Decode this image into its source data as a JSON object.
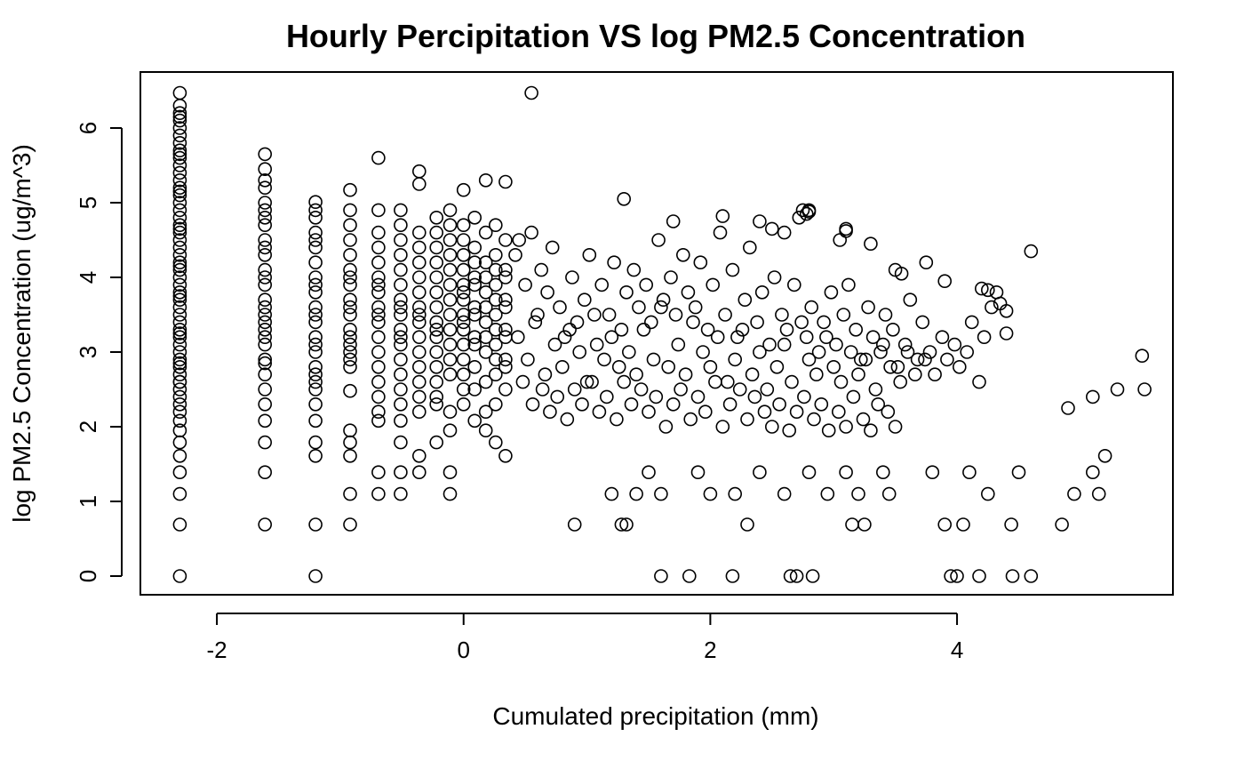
{
  "chart_data": {
    "type": "scatter",
    "title": "Hourly Percipitation VS log PM2.5 Concentration",
    "xlabel": "Cumulated precipitation (mm)",
    "ylabel": "log PM2.5 Concentration (ug/m^3)",
    "xlim": [
      -2.62,
      5.75
    ],
    "ylim": [
      -0.25,
      6.75
    ],
    "xticks": [
      -2,
      0,
      2,
      4
    ],
    "yticks": [
      0,
      1,
      2,
      3,
      4,
      5,
      6
    ],
    "grid": false,
    "legend": "none",
    "marker": "open-circle",
    "marker_color": "#000000",
    "columns_note_excluded": true,
    "x": [
      -2.3,
      -2.3,
      -2.3,
      -2.3,
      -2.3,
      -2.3,
      -2.3,
      -2.3,
      -2.3,
      -2.3,
      -2.3,
      -2.3,
      -2.3,
      -2.3,
      -2.3,
      -2.3,
      -2.3,
      -2.3,
      -2.3,
      -2.3,
      -2.3,
      -2.3,
      -2.3,
      -2.3,
      -2.3,
      -2.3,
      -2.3,
      -2.3,
      -2.3,
      -2.3,
      -2.3,
      -2.3,
      -2.3,
      -2.3,
      -2.3,
      -2.3,
      -2.3,
      -2.3,
      -2.3,
      -2.3,
      -2.3,
      -2.3,
      -2.3,
      -2.3,
      -2.3,
      -2.3,
      -2.3,
      -2.3,
      -2.3,
      -2.3,
      -2.3,
      -2.3,
      -2.3,
      -2.3,
      -2.3,
      -2.3,
      -2.3,
      -2.3,
      -2.3,
      -2.3,
      -1.61,
      -1.61,
      -1.61,
      -1.61,
      -1.61,
      -1.61,
      -1.61,
      -1.61,
      -1.61,
      -1.61,
      -1.61,
      -1.61,
      -1.61,
      -1.61,
      -1.61,
      -1.61,
      -1.61,
      -1.61,
      -1.61,
      -1.61,
      -1.61,
      -1.61,
      -1.61,
      -1.61,
      -1.61,
      -1.61,
      -1.61,
      -1.61,
      -1.61,
      -1.61,
      -1.2,
      -1.2,
      -1.2,
      -1.2,
      -1.2,
      -1.2,
      -1.2,
      -1.2,
      -1.2,
      -1.2,
      -1.2,
      -1.2,
      -1.2,
      -1.2,
      -1.2,
      -1.2,
      -1.2,
      -1.2,
      -1.2,
      -1.2,
      -1.2,
      -1.2,
      -1.2,
      -1.2,
      -1.2,
      -1.2,
      -0.92,
      -0.92,
      -0.92,
      -0.92,
      -0.92,
      -0.92,
      -0.92,
      -0.92,
      -0.92,
      -0.92,
      -0.92,
      -0.92,
      -0.92,
      -0.92,
      -0.92,
      -0.92,
      -0.92,
      -0.92,
      -0.92,
      -0.92,
      -0.92,
      -0.92,
      -0.92,
      -0.69,
      -0.69,
      -0.69,
      -0.69,
      -0.69,
      -0.69,
      -0.69,
      -0.69,
      -0.69,
      -0.69,
      -0.69,
      -0.69,
      -0.69,
      -0.69,
      -0.69,
      -0.69,
      -0.69,
      -0.69,
      -0.69,
      -0.69,
      -0.51,
      -0.51,
      -0.51,
      -0.51,
      -0.51,
      -0.51,
      -0.51,
      -0.51,
      -0.51,
      -0.51,
      -0.51,
      -0.51,
      -0.51,
      -0.51,
      -0.51,
      -0.51,
      -0.51,
      -0.51,
      -0.51,
      -0.51,
      -0.36,
      -0.36,
      -0.36,
      -0.36,
      -0.36,
      -0.36,
      -0.36,
      -0.36,
      -0.36,
      -0.36,
      -0.36,
      -0.36,
      -0.36,
      -0.36,
      -0.36,
      -0.36,
      -0.36,
      -0.36,
      -0.22,
      -0.22,
      -0.22,
      -0.22,
      -0.22,
      -0.22,
      -0.22,
      -0.22,
      -0.22,
      -0.22,
      -0.22,
      -0.22,
      -0.22,
      -0.22,
      -0.22,
      -0.22,
      -0.11,
      -0.11,
      -0.11,
      -0.11,
      -0.11,
      -0.11,
      -0.11,
      -0.11,
      -0.11,
      -0.11,
      -0.11,
      -0.11,
      -0.11,
      -0.11,
      -0.11,
      -0.11,
      0.0,
      0.0,
      0.0,
      0.0,
      0.0,
      0.0,
      0.0,
      0.0,
      0.0,
      0.0,
      0.0,
      0.0,
      0.0,
      0.0,
      0.0,
      0.0,
      0.09,
      0.09,
      0.09,
      0.09,
      0.09,
      0.09,
      0.09,
      0.09,
      0.09,
      0.09,
      0.09,
      0.09,
      0.18,
      0.18,
      0.18,
      0.18,
      0.18,
      0.18,
      0.18,
      0.18,
      0.18,
      0.18,
      0.18,
      0.18,
      0.26,
      0.26,
      0.26,
      0.26,
      0.26,
      0.26,
      0.26,
      0.26,
      0.26,
      0.26,
      0.26,
      0.26,
      0.34,
      0.34,
      0.34,
      0.34,
      0.34,
      0.34,
      0.34,
      0.34,
      0.34,
      0.34,
      0.34,
      0.34,
      0.42,
      0.45,
      0.5,
      0.55,
      0.6,
      0.63,
      0.68,
      0.72,
      0.78,
      0.82,
      0.88,
      0.92,
      0.98,
      1.02,
      1.08,
      1.12,
      1.18,
      1.22,
      1.28,
      1.32,
      1.38,
      1.42,
      1.48,
      1.52,
      1.58,
      1.62,
      1.68,
      1.72,
      1.78,
      1.82,
      1.88,
      1.92,
      1.98,
      2.02,
      2.08,
      2.12,
      2.18,
      2.22,
      2.28,
      2.32,
      2.38,
      2.42,
      2.48,
      2.52,
      2.58,
      2.62,
      2.68,
      2.72,
      2.78,
      2.82,
      2.88,
      2.92,
      2.98,
      3.02,
      3.08,
      3.12,
      3.18,
      3.22,
      3.28,
      3.32,
      3.38,
      3.42,
      3.48,
      3.52,
      3.58,
      3.62,
      3.68,
      3.72,
      3.78,
      3.82,
      3.88,
      3.92,
      3.98,
      4.02,
      4.08,
      4.12,
      4.18,
      4.22,
      4.28,
      4.32,
      0.44,
      0.52,
      0.58,
      0.66,
      0.74,
      0.8,
      0.86,
      0.94,
      1.0,
      1.06,
      1.14,
      1.2,
      1.26,
      1.34,
      1.4,
      1.46,
      1.54,
      1.6,
      1.66,
      1.74,
      1.8,
      1.86,
      1.94,
      2.0,
      2.06,
      2.14,
      2.2,
      2.26,
      2.34,
      2.4,
      2.46,
      2.54,
      2.6,
      2.66,
      2.74,
      2.8,
      2.86,
      2.94,
      3.0,
      3.06,
      3.14,
      3.2,
      3.26,
      3.34,
      3.4,
      3.46,
      3.54,
      3.6,
      3.66,
      3.74,
      0.48,
      0.56,
      0.64,
      0.7,
      0.76,
      0.84,
      0.9,
      0.96,
      1.04,
      1.1,
      1.16,
      1.24,
      1.3,
      1.36,
      1.44,
      1.5,
      1.56,
      1.64,
      1.7,
      1.76,
      1.84,
      1.9,
      1.96,
      2.04,
      2.1,
      2.16,
      2.24,
      2.3,
      2.36,
      2.44,
      2.5,
      2.56,
      2.64,
      2.7,
      2.76,
      2.84,
      2.9,
      2.96,
      3.04,
      3.1,
      3.16,
      3.24,
      3.3,
      3.36,
      3.44,
      3.5,
      0.55,
      1.3,
      1.7,
      2.1,
      2.5,
      2.8,
      3.1,
      3.5,
      3.9,
      4.2,
      4.4,
      4.6,
      4.9,
      5.1,
      5.3,
      5.5,
      5.52,
      1.6,
      1.83,
      2.18,
      2.65,
      2.7,
      2.83,
      3.95,
      4.0,
      4.18,
      4.45,
      4.6,
      0.9,
      1.28,
      1.32,
      2.3,
      3.15,
      3.25,
      3.9,
      4.05,
      4.44,
      4.85,
      1.2,
      1.4,
      1.6,
      2.0,
      2.2,
      2.6,
      2.95,
      3.2,
      3.45,
      4.25,
      4.95,
      5.15,
      1.5,
      1.9,
      2.4,
      2.8,
      3.1,
      3.4,
      3.8,
      4.1,
      4.5,
      5.1,
      5.2,
      2.75,
      2.78,
      2.8,
      2.6,
      2.4,
      3.05,
      3.1,
      3.3,
      3.55,
      3.75,
      4.25,
      4.35,
      4.4
    ],
    "y": [
      6.47,
      6.3,
      6.2,
      6.1,
      6.0,
      5.9,
      5.8,
      5.7,
      5.6,
      5.5,
      5.4,
      5.3,
      5.2,
      5.1,
      5.0,
      4.9,
      4.8,
      4.7,
      4.6,
      4.5,
      4.4,
      4.3,
      4.2,
      4.1,
      4.0,
      3.9,
      3.8,
      3.7,
      3.6,
      3.5,
      3.4,
      3.3,
      3.2,
      3.1,
      3.0,
      2.9,
      2.8,
      2.7,
      2.6,
      2.5,
      2.4,
      2.3,
      2.2,
      2.08,
      1.95,
      1.79,
      1.61,
      1.39,
      1.1,
      0.69,
      0.0,
      3.75,
      3.25,
      2.85,
      4.15,
      4.65,
      5.15,
      5.65,
      6.15,
      2.6,
      5.65,
      5.45,
      5.3,
      4.9,
      4.7,
      4.5,
      4.3,
      4.1,
      3.9,
      3.7,
      3.5,
      3.3,
      3.1,
      2.9,
      2.7,
      2.5,
      2.3,
      2.08,
      1.79,
      1.39,
      0.69,
      4.8,
      4.0,
      3.6,
      3.2,
      2.85,
      4.4,
      5.0,
      5.2,
      3.4,
      5.01,
      4.8,
      4.6,
      4.4,
      4.2,
      4.0,
      3.8,
      3.6,
      3.4,
      3.2,
      3.0,
      2.8,
      2.6,
      2.3,
      2.08,
      1.79,
      1.61,
      0.69,
      0.0,
      4.9,
      4.5,
      3.9,
      3.5,
      3.1,
      2.7,
      2.5,
      5.17,
      4.9,
      4.5,
      4.3,
      4.1,
      3.9,
      3.7,
      3.5,
      3.3,
      3.1,
      2.9,
      2.8,
      2.48,
      1.95,
      1.79,
      1.61,
      1.1,
      0.69,
      4.7,
      4.0,
      3.6,
      3.2,
      3.0,
      5.6,
      4.9,
      4.6,
      4.4,
      4.2,
      4.0,
      3.8,
      3.6,
      3.4,
      3.2,
      3.0,
      2.8,
      2.6,
      2.4,
      2.2,
      2.08,
      1.39,
      1.1,
      3.9,
      3.5,
      4.9,
      4.7,
      4.5,
      4.3,
      4.1,
      3.9,
      3.7,
      3.5,
      3.3,
      3.1,
      2.9,
      2.7,
      2.5,
      2.3,
      2.08,
      1.79,
      1.39,
      1.1,
      3.6,
      3.2,
      5.42,
      5.25,
      4.6,
      4.4,
      4.2,
      4.0,
      3.8,
      3.6,
      3.4,
      3.2,
      3.0,
      2.8,
      2.6,
      2.4,
      2.2,
      1.61,
      1.39,
      3.5,
      4.8,
      4.6,
      4.4,
      4.2,
      4.0,
      3.8,
      3.6,
      3.4,
      3.2,
      3.0,
      2.8,
      2.6,
      2.4,
      2.3,
      1.79,
      3.3,
      4.9,
      4.7,
      4.5,
      4.3,
      4.1,
      3.9,
      3.7,
      3.5,
      3.3,
      3.1,
      2.9,
      2.7,
      2.2,
      1.95,
      1.39,
      1.1,
      5.17,
      4.7,
      4.5,
      4.3,
      4.1,
      3.9,
      3.7,
      3.5,
      3.3,
      3.1,
      2.9,
      2.7,
      2.5,
      2.3,
      3.8,
      3.4,
      4.8,
      4.4,
      4.0,
      3.6,
      3.2,
      2.8,
      2.5,
      2.08,
      4.2,
      3.9,
      3.5,
      3.1,
      5.3,
      4.6,
      4.2,
      3.8,
      3.4,
      3.0,
      2.6,
      2.2,
      1.95,
      4.0,
      3.6,
      3.2,
      4.7,
      4.3,
      3.9,
      3.5,
      3.1,
      2.7,
      2.3,
      1.79,
      4.1,
      3.7,
      3.3,
      2.9,
      5.28,
      4.5,
      4.1,
      3.7,
      3.3,
      2.9,
      2.5,
      1.61,
      4.0,
      3.6,
      3.2,
      2.8,
      4.3,
      4.5,
      3.9,
      4.6,
      3.5,
      4.1,
      3.8,
      4.4,
      3.6,
      3.2,
      4.0,
      3.4,
      3.7,
      4.3,
      3.1,
      3.9,
      3.5,
      4.2,
      3.3,
      3.8,
      4.1,
      3.6,
      3.9,
      3.4,
      4.5,
      3.7,
      4.0,
      3.5,
      4.3,
      3.8,
      3.6,
      4.2,
      3.3,
      3.9,
      4.6,
      3.5,
      4.1,
      3.2,
      3.7,
      4.4,
      3.4,
      3.8,
      3.1,
      4.0,
      3.5,
      3.3,
      3.9,
      4.8,
      3.2,
      3.6,
      3.0,
      3.4,
      3.8,
      3.1,
      3.5,
      3.9,
      3.3,
      2.9,
      3.6,
      3.2,
      3.0,
      3.5,
      3.3,
      2.8,
      3.1,
      3.7,
      2.9,
      3.4,
      3.0,
      2.7,
      3.2,
      2.9,
      3.1,
      2.8,
      3.0,
      3.4,
      2.6,
      3.2,
      3.6,
      3.8,
      3.2,
      2.9,
      3.4,
      2.7,
      3.1,
      2.8,
      3.3,
      3.0,
      2.6,
      3.5,
      2.9,
      3.2,
      2.8,
      3.0,
      2.7,
      3.3,
      2.9,
      3.6,
      2.8,
      3.1,
      2.7,
      3.4,
      3.0,
      2.8,
      3.2,
      2.6,
      2.9,
      3.3,
      2.7,
      3.0,
      2.5,
      2.8,
      3.1,
      2.6,
      3.4,
      2.9,
      2.7,
      3.2,
      2.8,
      2.6,
      3.0,
      2.7,
      2.9,
      2.5,
      3.1,
      2.8,
      2.6,
      3.0,
      2.7,
      2.9,
      2.6,
      2.3,
      2.5,
      2.2,
      2.4,
      2.1,
      2.5,
      2.3,
      2.6,
      2.2,
      2.4,
      2.1,
      2.6,
      2.3,
      2.5,
      2.2,
      2.4,
      2.0,
      2.3,
      2.5,
      2.1,
      2.4,
      2.2,
      2.6,
      2.0,
      2.3,
      2.5,
      2.1,
      2.4,
      2.2,
      2.0,
      2.3,
      1.95,
      2.2,
      2.4,
      2.1,
      2.3,
      1.95,
      2.2,
      2.0,
      2.4,
      2.1,
      1.95,
      2.3,
      2.2,
      2.0,
      6.47,
      5.05,
      4.75,
      4.82,
      4.65,
      4.9,
      4.62,
      4.1,
      3.95,
      3.85,
      3.25,
      4.35,
      2.25,
      2.4,
      2.5,
      2.95,
      2.5,
      0.0,
      0.0,
      0.0,
      0.0,
      0.0,
      0.0,
      0.0,
      0.0,
      0.0,
      0.0,
      0.0,
      0.69,
      0.69,
      0.69,
      0.69,
      0.69,
      0.69,
      0.69,
      0.69,
      0.69,
      0.69,
      1.1,
      1.1,
      1.1,
      1.1,
      1.1,
      1.1,
      1.1,
      1.1,
      1.1,
      1.1,
      1.1,
      1.1,
      1.39,
      1.39,
      1.39,
      1.39,
      1.39,
      1.39,
      1.39,
      1.39,
      1.39,
      1.39,
      1.61,
      4.9,
      4.85,
      4.88,
      4.6,
      4.75,
      4.5,
      4.65,
      4.45,
      4.05,
      4.2,
      3.83,
      3.65,
      3.55
    ]
  }
}
